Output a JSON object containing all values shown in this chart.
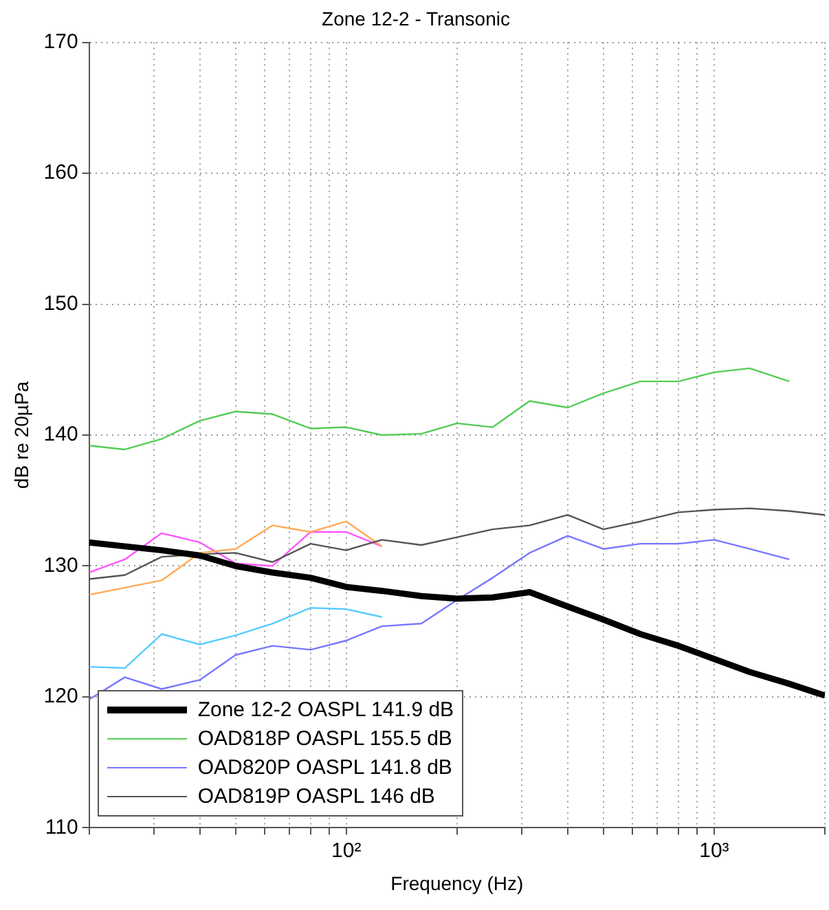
{
  "chart_data": {
    "type": "line",
    "title": "Zone 12-2 - Transonic",
    "xlabel": "Frequency (Hz)",
    "ylabel": "dB re 20µPa",
    "log": "x",
    "grid": true,
    "legend": "bottom left",
    "marker": "none",
    "line_style": "solid",
    "xlim": [
      20,
      2000
    ],
    "ylim": [
      110,
      170
    ],
    "yticks": [
      110,
      120,
      130,
      140,
      150,
      160,
      170
    ],
    "xticks": [
      {
        "value": 20,
        "label": null
      },
      {
        "value": 30,
        "label": null
      },
      {
        "value": 40,
        "label": null
      },
      {
        "value": 50,
        "label": null
      },
      {
        "value": 60,
        "label": null
      },
      {
        "value": 70,
        "label": null
      },
      {
        "value": 80,
        "label": null
      },
      {
        "value": 90,
        "label": null
      },
      {
        "value": 100,
        "label": "10²"
      },
      {
        "value": 200,
        "label": null
      },
      {
        "value": 300,
        "label": null
      },
      {
        "value": 400,
        "label": null
      },
      {
        "value": 500,
        "label": null
      },
      {
        "value": 600,
        "label": null
      },
      {
        "value": 700,
        "label": null
      },
      {
        "value": 800,
        "label": null
      },
      {
        "value": 900,
        "label": null
      },
      {
        "value": 1000,
        "label": "10³"
      },
      {
        "value": 2000,
        "label": null
      }
    ],
    "x": [
      20,
      25,
      31.5,
      40,
      50,
      63,
      80,
      100,
      125,
      160,
      200,
      250,
      315,
      400,
      500,
      630,
      800,
      1000,
      1250,
      1600,
      2000
    ],
    "series": [
      {
        "name": "Zone 12-2 OASPL 141.9 dB",
        "color": "#000000",
        "values": [
          131.8,
          131.5,
          131.2,
          130.8,
          130.0,
          129.5,
          129.1,
          128.4,
          128.1,
          127.7,
          127.5,
          127.6,
          128.0,
          126.9,
          125.9,
          124.8,
          123.9,
          122.9,
          121.9,
          121.0,
          120.1
        ]
      },
      {
        "name": "OAD818P OASPL 155.5 dB",
        "color": "#55cc55",
        "values": [
          139.2,
          138.9,
          139.7,
          141.1,
          141.8,
          141.6,
          140.5,
          140.6,
          140.0,
          140.1,
          140.9,
          140.6,
          142.6,
          142.1,
          143.2,
          144.1,
          144.1,
          144.8,
          145.1,
          144.1,
          null
        ]
      },
      {
        "name": "OAD820P OASPL 141.8 dB",
        "color": "#7777ff",
        "values": [
          119.8,
          121.5,
          120.6,
          121.3,
          123.2,
          123.9,
          123.6,
          124.3,
          125.4,
          125.6,
          127.4,
          129.1,
          131.0,
          132.3,
          131.3,
          131.7,
          131.7,
          132.0,
          131.3,
          130.5,
          null
        ]
      },
      {
        "name": "OAD819P OASPL 146 dB",
        "color": "#555555",
        "values": [
          129.0,
          129.3,
          130.7,
          130.9,
          131.0,
          130.3,
          131.7,
          131.2,
          132.0,
          131.6,
          132.2,
          132.8,
          133.1,
          133.9,
          132.8,
          133.4,
          134.1,
          134.3,
          134.4,
          134.2,
          133.9
        ]
      },
      {
        "color": "#ffaa55",
        "x": [
          20,
          31.5,
          40,
          50,
          63,
          80,
          100,
          125
        ],
        "values": [
          127.8,
          128.9,
          131.0,
          131.3,
          133.1,
          132.6,
          133.4,
          131.5
        ]
      },
      {
        "color": "#ff55ff",
        "x": [
          20,
          25,
          31.5,
          40,
          50,
          63,
          80,
          100,
          125
        ],
        "values": [
          129.5,
          130.5,
          132.5,
          131.8,
          130.2,
          130.0,
          132.6,
          132.6,
          131.5
        ]
      },
      {
        "color": "#55ccff",
        "x": [
          20,
          25,
          31.5,
          40,
          50,
          63,
          80,
          100,
          125
        ],
        "values": [
          122.3,
          122.2,
          124.8,
          124.0,
          124.7,
          125.6,
          126.8,
          126.7,
          126.1
        ]
      }
    ]
  }
}
